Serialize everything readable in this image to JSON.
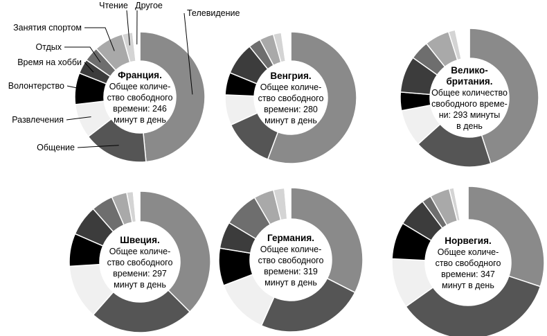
{
  "colors": {
    "Телевидение": "#8a8a8a",
    "Общение": "#555555",
    "Развлечения": "#f0f0f0",
    "Волонтерство": "#000000",
    "Время на хобби": "#3c3c3c",
    "Отдых": "#6e6e6e",
    "Занятия спортом": "#a9a9a9",
    "Чтение": "#d4d4d4",
    "Другое": "#ffffff",
    "stroke": "#ffffff",
    "label_line": "#000000"
  },
  "legend_labels": [
    "Телевидение",
    "Общение",
    "Развлечения",
    "Волонтерство",
    "Время на хобби",
    "Отдых",
    "Занятия спортом",
    "Чтение",
    "Другое"
  ],
  "chart_data": {
    "type": "pie",
    "variant": "donut",
    "title": "",
    "units": "минут в день",
    "categories": [
      "Телевидение",
      "Общение",
      "Развлечения",
      "Волонтерство",
      "Время на хобби",
      "Отдых",
      "Занятия спортом",
      "Чтение",
      "Другое"
    ],
    "series": [
      {
        "name": "Франция",
        "total_minutes": 246,
        "center_lines": [
          "Франция.",
          "Общее количе-",
          "ство свободного",
          "времени: 246",
          "минут в день"
        ],
        "values": [
          46.4,
          15.4,
          8.2,
          7.5,
          3.5,
          3.5,
          7.0,
          2.5,
          1.7
        ]
      },
      {
        "name": "Венгрия",
        "total_minutes": 280,
        "center_lines": [
          "Венгрия.",
          "Общее количе-",
          "ство свободного",
          "времени: 280",
          "минут в день"
        ],
        "values": [
          55.7,
          12.5,
          7.5,
          5.5,
          8.0,
          3.0,
          3.5,
          2.0,
          2.3
        ]
      },
      {
        "name": "Великобритания",
        "total_minutes": 293,
        "center_lines": [
          "Велико-",
          "британия.",
          "Общее количество",
          "свободного време-",
          "ни: 293 минуты",
          "в день"
        ],
        "values": [
          45.0,
          18.3,
          8.7,
          4.3,
          8.5,
          4.5,
          5.8,
          1.6,
          3.3
        ]
      },
      {
        "name": "Швеция",
        "total_minutes": 297,
        "center_lines": [
          "Швеция.",
          "Общее количе-",
          "ство свободного",
          "времени: 297",
          "минут в день"
        ],
        "values": [
          37.5,
          24.0,
          12.5,
          7.5,
          7.0,
          5.0,
          3.5,
          1.5,
          1.5
        ]
      },
      {
        "name": "Германия",
        "total_minutes": 319,
        "center_lines": [
          "Германия.",
          "Общее количе-",
          "ство свободного",
          "времени: 319",
          "минут в день"
        ],
        "values": [
          32.5,
          24.2,
          12.5,
          8.4,
          6.0,
          8.0,
          4.5,
          2.5,
          1.4
        ]
      },
      {
        "name": "Норвегия",
        "total_minutes": 347,
        "center_lines": [
          "Норвегия.",
          "Общее количе-",
          "ство свободного",
          "времени: 347",
          "минут в день"
        ],
        "values": [
          30.1,
          35.1,
          10.6,
          7.8,
          6.2,
          2.0,
          4.2,
          1.0,
          3.0
        ]
      }
    ]
  }
}
